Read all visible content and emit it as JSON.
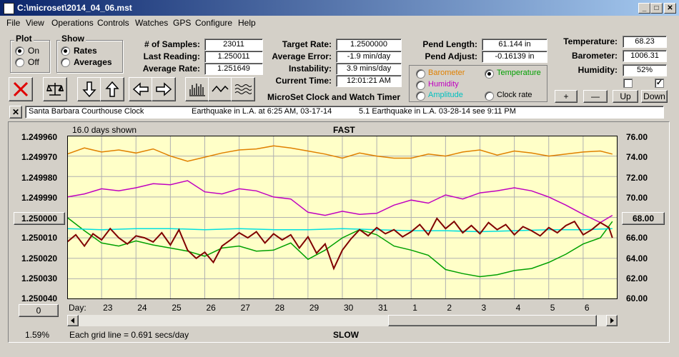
{
  "window": {
    "title": "C:\\microset\\2014_04_06.mst",
    "min_glyph": "_",
    "max_glyph": "□",
    "close_glyph": "✕"
  },
  "menu": [
    "File",
    "View",
    "Operations",
    "Controls",
    "Watches",
    "GPS",
    "Configure",
    "Help"
  ],
  "plot_group": {
    "title": "Plot",
    "options": [
      "On",
      "Off"
    ],
    "selected": "On"
  },
  "show_group": {
    "title": "Show",
    "options": [
      "Rates",
      "Averages"
    ],
    "selected": "Rates"
  },
  "stats_left": [
    {
      "label": "# of Samples:",
      "value": "23011"
    },
    {
      "label": "Last Reading:",
      "value": "1.250011"
    },
    {
      "label": "Average Rate:",
      "value": "1.251649"
    }
  ],
  "stats_mid": [
    {
      "label": "Target Rate:",
      "value": "1.2500000"
    },
    {
      "label": "Average Error:",
      "value": "-1.9 min/day"
    },
    {
      "label": "Instability:",
      "value": "3.9 mins/day"
    },
    {
      "label": "Current Time:",
      "value": "12:01:21 AM"
    }
  ],
  "stats_pend": [
    {
      "label": "Pend Length:",
      "value": "61.144 in"
    },
    {
      "label": "Pend Adjust:",
      "value": "-0.16139 in"
    }
  ],
  "sensors": [
    {
      "label": "Temperature:",
      "value": "68.23"
    },
    {
      "label": "Barometer:",
      "value": "1006.31"
    },
    {
      "label": "Humidity:",
      "value": "52%"
    }
  ],
  "overlay_options": [
    {
      "label": "Barometer",
      "color": "#e08000",
      "selected": false
    },
    {
      "label": "Temperature",
      "color": "#00a000",
      "selected": true
    },
    {
      "label": "Humidity",
      "color": "#c000c0",
      "selected": false
    },
    {
      "label": "Clock rate",
      "color": "#000000",
      "selected": false
    },
    {
      "label": "Amplitude",
      "color": "#00c0c0",
      "selected": false
    }
  ],
  "checkbox_values": [
    "",
    "✓"
  ],
  "timer_caption": "MicroSet Clock and Watch Timer",
  "scale_buttons": [
    "+",
    "—",
    "Up",
    "Down"
  ],
  "notes": {
    "close_glyph": "✕",
    "clock_name": "Santa Barbara Courthouse Clock",
    "note1": "Earthquake in L.A. at 6:25 AM, 03-17-14",
    "note2": "5.1 Earthquake in L.A. 03-28-14  see 9:11 PM"
  },
  "chart_header": {
    "days_shown": "16.0 days shown",
    "fast": "FAST",
    "slow": "SLOW",
    "grid_note": "Each grid line = 0.691 secs/day",
    "percent": "1.59%",
    "day_label": "Day:"
  },
  "left_axis_button": "1.250000",
  "right_axis_button": "68.00",
  "zero_button": "0",
  "colors": {
    "plot_bg": "#ffffc8",
    "barometer": "#e08000",
    "temperature": "#00a000",
    "humidity": "#c000c0",
    "rate": "#800000",
    "amplitude": "#00e0e0"
  },
  "chart_data": {
    "type": "line",
    "xlabel": "Day:",
    "days": [
      "23",
      "24",
      "25",
      "26",
      "27",
      "28",
      "29",
      "30",
      "31",
      "1",
      "2",
      "3",
      "4",
      "5",
      "6"
    ],
    "y_left": {
      "ticks": [
        "1.249960",
        "1.249970",
        "1.249980",
        "1.249990",
        "1.250000",
        "1.250010",
        "1.250020",
        "1.250030",
        "1.250040"
      ],
      "range": [
        1.24996,
        1.25004
      ],
      "inverted": true
    },
    "y_right": {
      "ticks": [
        "76.00",
        "74.00",
        "72.00",
        "70.00",
        "68.00",
        "66.00",
        "64.00",
        "62.00",
        "60.00"
      ],
      "range": [
        60,
        76
      ]
    },
    "x_range": [
      0,
      16
    ],
    "series": [
      {
        "name": "Barometer",
        "color": "#e08000",
        "axis": "right",
        "x": [
          0,
          0.5,
          1,
          1.5,
          2,
          2.5,
          3,
          3.5,
          4,
          4.5,
          5,
          5.5,
          6,
          6.5,
          7,
          7.5,
          8,
          8.5,
          9,
          9.5,
          10,
          10.5,
          11,
          11.5,
          12,
          12.5,
          13,
          13.5,
          14,
          14.5,
          15,
          15.5,
          15.85
        ],
        "y": [
          74.2,
          74.8,
          74.4,
          74.6,
          74.3,
          74.7,
          74.0,
          73.5,
          73.9,
          74.3,
          74.6,
          74.7,
          75.0,
          74.8,
          74.5,
          74.2,
          73.8,
          74.3,
          74.0,
          73.8,
          73.8,
          74.2,
          74.0,
          74.4,
          74.6,
          74.1,
          74.5,
          74.3,
          74.0,
          74.2,
          74.4,
          74.5,
          74.2
        ]
      },
      {
        "name": "Humidity",
        "color": "#c000c0",
        "axis": "right",
        "x": [
          0,
          0.5,
          1,
          1.5,
          2,
          2.5,
          3,
          3.5,
          4,
          4.5,
          5,
          5.5,
          6,
          6.5,
          7,
          7.5,
          8,
          8.5,
          9,
          9.5,
          10,
          10.5,
          11,
          11.5,
          12,
          12.5,
          13,
          13.5,
          14,
          14.5,
          15,
          15.5,
          15.85
        ],
        "y": [
          70.0,
          70.3,
          70.8,
          70.6,
          70.9,
          71.3,
          71.2,
          71.6,
          70.5,
          70.3,
          70.8,
          70.6,
          70.0,
          69.8,
          68.5,
          68.2,
          68.6,
          68.3,
          68.4,
          69.2,
          69.7,
          69.4,
          70.2,
          69.8,
          70.4,
          70.6,
          70.9,
          70.6,
          70.0,
          69.2,
          68.3,
          67.5,
          68.2
        ]
      },
      {
        "name": "Temperature",
        "color": "#00a000",
        "axis": "right",
        "x": [
          0,
          0.5,
          1,
          1.5,
          2,
          2.5,
          3,
          3.5,
          4,
          4.5,
          5,
          5.5,
          6,
          6.5,
          7,
          7.5,
          8,
          8.5,
          9,
          9.5,
          10,
          10.5,
          11,
          11.5,
          12,
          12.5,
          13,
          13.5,
          14,
          14.5,
          15,
          15.5,
          15.85
        ],
        "y": [
          68.0,
          66.7,
          65.5,
          65.2,
          65.7,
          65.3,
          65.0,
          64.7,
          64.2,
          65.0,
          65.2,
          64.7,
          64.8,
          65.5,
          63.9,
          64.8,
          66.0,
          66.8,
          66.3,
          65.2,
          64.8,
          64.3,
          62.9,
          62.5,
          62.2,
          62.4,
          62.8,
          63.0,
          63.6,
          64.4,
          65.4,
          66.0,
          67.6
        ]
      },
      {
        "name": "Amplitude",
        "color": "#00e0e0",
        "axis": "right",
        "x": [
          0,
          1,
          2,
          3,
          4,
          5,
          6,
          7,
          8,
          9,
          10,
          11,
          12,
          13,
          14,
          15,
          15.85
        ],
        "y": [
          66.9,
          66.8,
          66.9,
          66.9,
          66.8,
          66.9,
          66.8,
          66.8,
          66.9,
          66.8,
          66.7,
          66.7,
          66.6,
          66.7,
          66.8,
          66.8,
          66.9
        ]
      },
      {
        "name": "Clock rate",
        "color": "#800000",
        "axis": "right",
        "x": [
          0,
          0.25,
          0.5,
          0.75,
          1,
          1.25,
          1.5,
          1.75,
          2,
          2.25,
          2.5,
          2.75,
          3,
          3.25,
          3.5,
          3.75,
          4,
          4.25,
          4.5,
          4.75,
          5,
          5.25,
          5.5,
          5.75,
          6,
          6.25,
          6.5,
          6.75,
          7,
          7.25,
          7.5,
          7.75,
          8,
          8.25,
          8.5,
          8.75,
          9,
          9.25,
          9.5,
          9.75,
          10,
          10.25,
          10.5,
          10.75,
          11,
          11.25,
          11.5,
          11.75,
          12,
          12.25,
          12.5,
          12.75,
          13,
          13.25,
          13.5,
          13.75,
          14,
          14.25,
          14.5,
          14.75,
          15,
          15.25,
          15.5,
          15.75,
          15.85
        ],
        "y": [
          65.6,
          66.3,
          65.2,
          66.4,
          65.8,
          66.9,
          66.0,
          65.4,
          66.2,
          66.0,
          65.6,
          66.5,
          65.3,
          66.8,
          64.8,
          64.0,
          64.6,
          63.6,
          65.2,
          65.8,
          66.5,
          66.0,
          66.6,
          65.5,
          66.4,
          65.8,
          66.3,
          65.0,
          66.1,
          64.5,
          65.4,
          63.0,
          64.8,
          65.9,
          66.8,
          66.2,
          67.0,
          66.4,
          66.8,
          66.1,
          66.6,
          67.3,
          66.3,
          67.9,
          66.9,
          67.6,
          66.5,
          67.2,
          66.4,
          67.5,
          66.8,
          67.3,
          66.3,
          67.1,
          66.7,
          66.2,
          67.0,
          66.5,
          67.2,
          67.6,
          66.3,
          66.8,
          67.5,
          67.0,
          66.0
        ]
      }
    ]
  }
}
